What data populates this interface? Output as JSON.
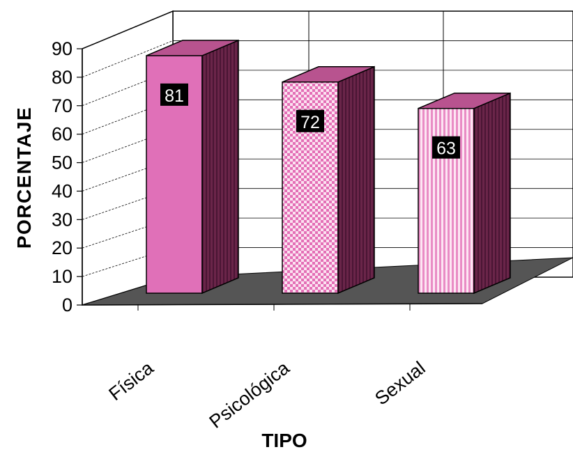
{
  "chart_data": {
    "type": "bar",
    "style": "3d-column",
    "categories": [
      "Física",
      "Psicológica",
      "Sexual"
    ],
    "values": [
      81,
      72,
      63
    ],
    "data_labels": [
      "81",
      "72",
      "63"
    ],
    "xlabel": "TIPO",
    "ylabel": "PORCENTAJE",
    "ylim": [
      0,
      90
    ],
    "yticks": [
      "0",
      "10",
      "20",
      "30",
      "40",
      "50",
      "60",
      "70",
      "80",
      "90"
    ],
    "grid": true,
    "legend": "none",
    "colors": {
      "bar_front": [
        "#e070b8",
        "#f3b6dc",
        "#f6c3e3"
      ],
      "bar_top": "#b8538f",
      "bar_side": "#5c1f41",
      "floor": "#555555",
      "label_bg": "#000000"
    },
    "patterns": [
      "solid",
      "checker",
      "vertical-stripes"
    ]
  }
}
